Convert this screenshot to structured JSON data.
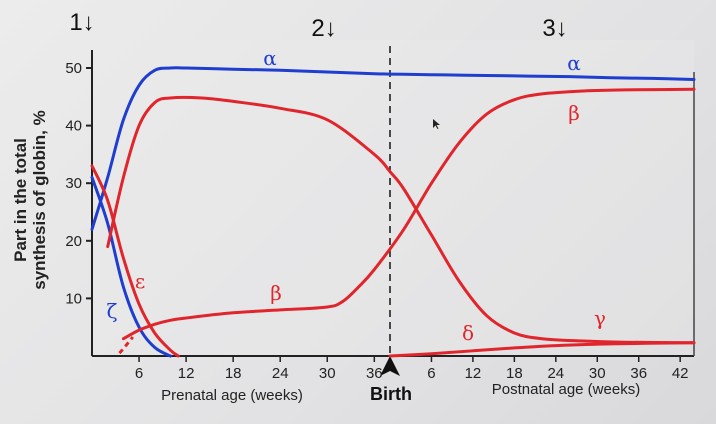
{
  "chart_data": {
    "type": "line",
    "ylabel_line1": "Part in the total",
    "ylabel_line2": "synthesis of globin, %",
    "ylim": [
      0,
      50
    ],
    "yticks": [
      "10",
      "20",
      "30",
      "40",
      "50"
    ],
    "prenatal": {
      "label": "Prenatal age (weeks)",
      "ticks": [
        "6",
        "12",
        "18",
        "24",
        "30",
        "36"
      ]
    },
    "birth_label": "Birth",
    "postnatal": {
      "label": "Postnatal age (weeks)",
      "ticks": [
        "6",
        "12",
        "18",
        "24",
        "30",
        "36",
        "42"
      ]
    },
    "phase_markers": [
      "1↓",
      "2↓",
      "3↓"
    ],
    "colors": {
      "red": "#e0262c",
      "blue": "#1f3ecf"
    },
    "series": [
      {
        "name": "α",
        "color": "#1f3ecf",
        "axis_segment": "both",
        "x": [
          0,
          2,
          4,
          6,
          8,
          10,
          12,
          18,
          24,
          30,
          36,
          40,
          46,
          52,
          58,
          64,
          70,
          76,
          82
        ],
        "y": [
          22,
          31,
          41,
          47,
          49.6,
          50,
          50,
          49.8,
          49.6,
          49.3,
          49,
          48.9,
          48.8,
          48.7,
          48.6,
          48.5,
          48.3,
          48.2,
          48
        ]
      },
      {
        "name": "ζ",
        "color": "#1f3ecf",
        "axis_segment": "prenatal",
        "x": [
          0,
          2,
          4,
          6,
          8,
          10
        ],
        "y": [
          31,
          23,
          12,
          5,
          1.5,
          0
        ]
      },
      {
        "name": "ε",
        "color": "#e0262c",
        "axis_segment": "prenatal",
        "x": [
          0,
          2,
          4,
          6,
          8,
          10,
          11
        ],
        "y": [
          33,
          27,
          17,
          9,
          4,
          1,
          0
        ]
      },
      {
        "name": "γ",
        "color": "#e0262c",
        "axis_segment": "both",
        "x": [
          2,
          4,
          6,
          8,
          10,
          14,
          18,
          24,
          30,
          36,
          38,
          40,
          44,
          48,
          52,
          56,
          60,
          66,
          72,
          82
        ],
        "y": [
          19,
          31,
          40,
          44,
          44.8,
          44.8,
          44.2,
          43,
          41,
          35,
          32,
          29,
          21,
          13,
          7,
          4,
          3,
          2.6,
          2.4,
          2.3
        ]
      },
      {
        "name": "β",
        "color": "#e0262c",
        "axis_segment": "both",
        "x": [
          4,
          6,
          8,
          10,
          12,
          18,
          24,
          30,
          32,
          34,
          36,
          40,
          44,
          48,
          52,
          56,
          60,
          66,
          72,
          82
        ],
        "y": [
          3,
          4.5,
          5.5,
          6.2,
          6.6,
          7.5,
          8,
          8.5,
          9.5,
          12,
          15,
          22,
          30,
          37,
          42,
          44.5,
          45.5,
          46,
          46.2,
          46.3
        ]
      },
      {
        "name": "δ",
        "color": "#e0262c",
        "axis_segment": "postnatal",
        "x": [
          38,
          44,
          50,
          56,
          62,
          70,
          82
        ],
        "y": [
          0,
          0.4,
          0.9,
          1.4,
          1.8,
          2.1,
          2.3
        ]
      }
    ],
    "label_alpha_prenatal": "α",
    "label_alpha_postnatal": "α",
    "label_beta_prenatal": "β",
    "label_beta_postnatal": "β",
    "label_gamma": "γ",
    "label_epsilon": "ε",
    "label_zeta": "ζ",
    "label_delta": "δ"
  }
}
